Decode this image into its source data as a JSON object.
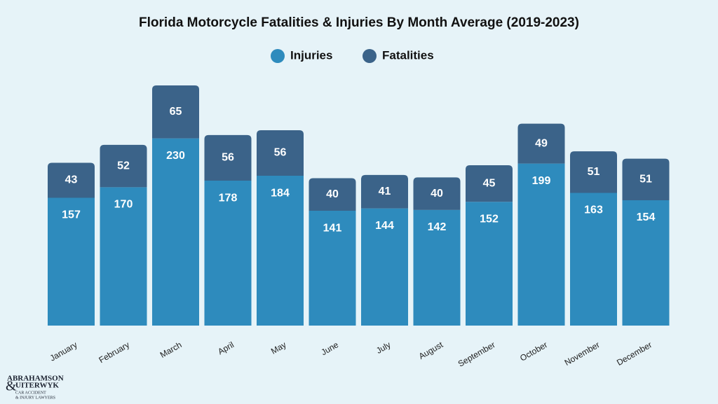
{
  "chart_data": {
    "type": "stacked-bar",
    "title": "Florida Motorcycle Fatalities & Injuries By Month Average (2019-2023)",
    "categories": [
      "January",
      "February",
      "March",
      "April",
      "May",
      "June",
      "July",
      "August",
      "September",
      "October",
      "November",
      "December"
    ],
    "series": [
      {
        "name": "Injuries",
        "color": "#2e8bbd",
        "values": [
          157,
          170,
          230,
          178,
          184,
          141,
          144,
          142,
          152,
          199,
          163,
          154
        ]
      },
      {
        "name": "Fatalities",
        "color": "#3b6389",
        "values": [
          43,
          52,
          65,
          56,
          56,
          40,
          41,
          40,
          45,
          49,
          51,
          51
        ]
      }
    ]
  },
  "logo": {
    "line1": "ABRAHAMSON",
    "amp": "&",
    "line2": "UITERWYK",
    "line3": "CAR ACCIDENT",
    "line4": "& INJURY LAWYERS"
  }
}
